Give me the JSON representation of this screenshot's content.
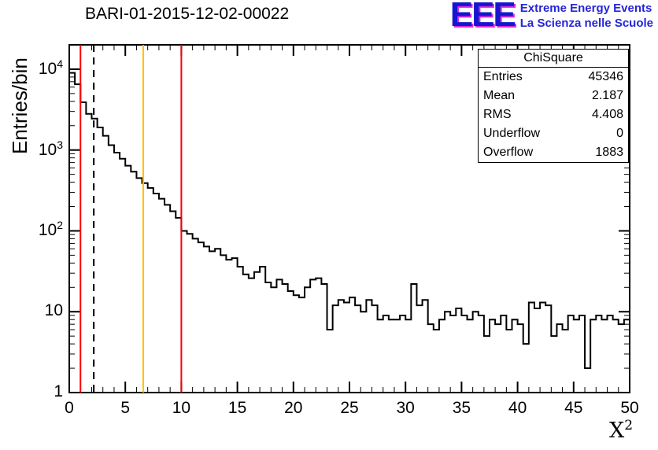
{
  "title": "BARI-01-2015-12-02-00022",
  "logo": {
    "text": "EEE",
    "line1": "Extreme Energy Events",
    "line2": "La Scienza nelle Scuole",
    "blue": "#1616d0",
    "magenta": "#d92ad9"
  },
  "stats": {
    "title": "ChiSquare",
    "rows": [
      [
        "Entries",
        "45346"
      ],
      [
        "Mean",
        "2.187"
      ],
      [
        "RMS",
        "4.408"
      ],
      [
        "Underflow",
        "0"
      ],
      [
        "Overflow",
        "1883"
      ]
    ]
  },
  "chart_data": {
    "type": "bar",
    "style": "step-histogram",
    "title": "BARI-01-2015-12-02-00022",
    "xlabel": "X^2",
    "ylabel": "Entries/bin",
    "xlim": [
      0,
      50
    ],
    "ylim": [
      1,
      20000
    ],
    "yscale": "log",
    "grid": false,
    "line_color": "#000000",
    "bin_start": 0,
    "bin_width": 0.5,
    "values": [
      9000,
      6500,
      3900,
      2800,
      2450,
      1900,
      1500,
      1150,
      930,
      780,
      640,
      540,
      450,
      390,
      340,
      290,
      250,
      210,
      175,
      145,
      100,
      92,
      80,
      72,
      64,
      56,
      60,
      50,
      44,
      46,
      36,
      29,
      26,
      31,
      36,
      23,
      20,
      25,
      22,
      18,
      16,
      15,
      20,
      25,
      26,
      22,
      6,
      12,
      14,
      13,
      15,
      12,
      10,
      14,
      12,
      8,
      9,
      8,
      8,
      9,
      8,
      22,
      12,
      14,
      7,
      6,
      8,
      10,
      9,
      11,
      9,
      8,
      10,
      9,
      5,
      8,
      7,
      9,
      6,
      8,
      7,
      4,
      13,
      11,
      13,
      12,
      5,
      7,
      6,
      9,
      8,
      9,
      2,
      8,
      9,
      8,
      9,
      8,
      7,
      8
    ],
    "xticks": {
      "major": [
        0,
        5,
        10,
        15,
        20,
        25,
        30,
        35,
        40,
        45,
        50
      ],
      "minor_step": 1
    },
    "yticks": {
      "major": [
        1,
        10,
        100,
        1000,
        10000
      ],
      "labels": [
        "1",
        "10",
        "10^2",
        "10^3",
        "10^4"
      ]
    },
    "vlines": [
      {
        "x": 1.0,
        "color": "#ff0000",
        "style": "solid"
      },
      {
        "x": 2.187,
        "color": "#000000",
        "style": "dashed"
      },
      {
        "x": 6.6,
        "color": "#ffc000",
        "style": "solid"
      },
      {
        "x": 10.0,
        "color": "#ff0000",
        "style": "solid"
      }
    ]
  }
}
